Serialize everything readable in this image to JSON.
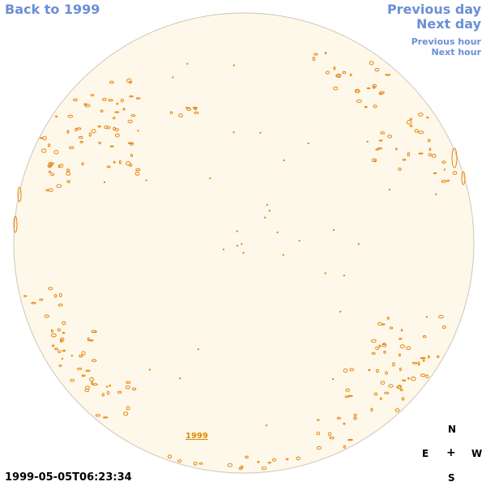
{
  "nav": {
    "back": "Back to 1999",
    "previous_day": "Previous day",
    "next_day": "Next day",
    "previous_hour": "Previous hour",
    "next_hour": "Next hour"
  },
  "image": {
    "year_link": "1999",
    "timestamp": "1999-05-05T06:23:34",
    "disk_color": "#fdf8ea",
    "limb_color": "#cfc6b4",
    "feature_color": "#e8820a"
  },
  "compass": {
    "north": "N",
    "east": "E",
    "center": "+",
    "west": "W",
    "south": "S"
  }
}
